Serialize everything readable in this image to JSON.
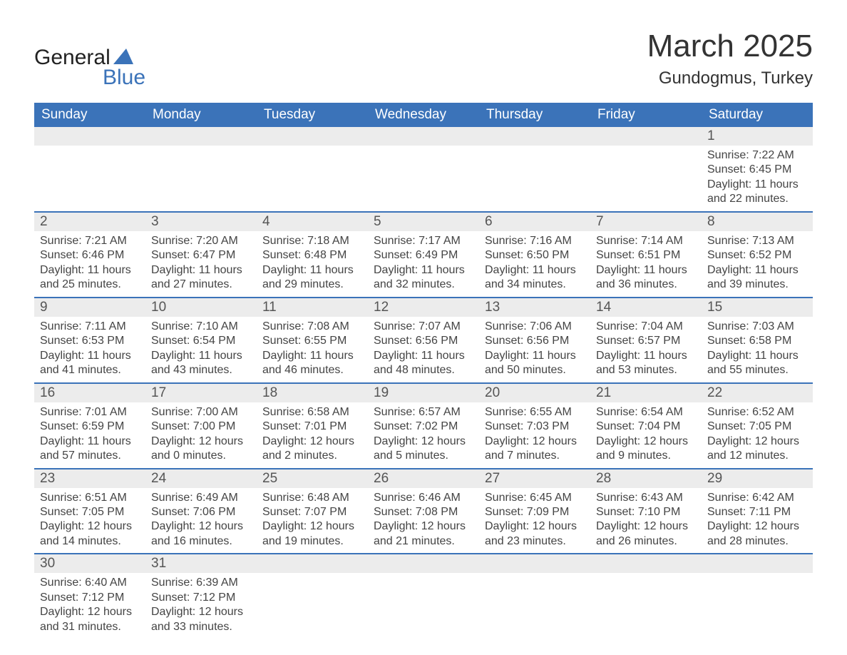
{
  "brand": {
    "line1a": "General",
    "line2": "Blue"
  },
  "colors": {
    "header_bg": "#3b73b9",
    "header_text": "#ffffff",
    "daynum_bg": "#ececec",
    "text": "#444444",
    "row_divider": "#3b73b9",
    "background": "#ffffff"
  },
  "title": {
    "month": "March 2025",
    "location": "Gundogmus, Turkey",
    "month_fontsize": 44,
    "location_fontsize": 24
  },
  "table": {
    "header_fontsize": 19,
    "cell_fontsize": 16,
    "columns": [
      "Sunday",
      "Monday",
      "Tuesday",
      "Wednesday",
      "Thursday",
      "Friday",
      "Saturday"
    ],
    "weeks": [
      [
        null,
        null,
        null,
        null,
        null,
        null,
        {
          "n": "1",
          "sr": "Sunrise: 7:22 AM",
          "ss": "Sunset: 6:45 PM",
          "dl": "Daylight: 11 hours and 22 minutes."
        }
      ],
      [
        {
          "n": "2",
          "sr": "Sunrise: 7:21 AM",
          "ss": "Sunset: 6:46 PM",
          "dl": "Daylight: 11 hours and 25 minutes."
        },
        {
          "n": "3",
          "sr": "Sunrise: 7:20 AM",
          "ss": "Sunset: 6:47 PM",
          "dl": "Daylight: 11 hours and 27 minutes."
        },
        {
          "n": "4",
          "sr": "Sunrise: 7:18 AM",
          "ss": "Sunset: 6:48 PM",
          "dl": "Daylight: 11 hours and 29 minutes."
        },
        {
          "n": "5",
          "sr": "Sunrise: 7:17 AM",
          "ss": "Sunset: 6:49 PM",
          "dl": "Daylight: 11 hours and 32 minutes."
        },
        {
          "n": "6",
          "sr": "Sunrise: 7:16 AM",
          "ss": "Sunset: 6:50 PM",
          "dl": "Daylight: 11 hours and 34 minutes."
        },
        {
          "n": "7",
          "sr": "Sunrise: 7:14 AM",
          "ss": "Sunset: 6:51 PM",
          "dl": "Daylight: 11 hours and 36 minutes."
        },
        {
          "n": "8",
          "sr": "Sunrise: 7:13 AM",
          "ss": "Sunset: 6:52 PM",
          "dl": "Daylight: 11 hours and 39 minutes."
        }
      ],
      [
        {
          "n": "9",
          "sr": "Sunrise: 7:11 AM",
          "ss": "Sunset: 6:53 PM",
          "dl": "Daylight: 11 hours and 41 minutes."
        },
        {
          "n": "10",
          "sr": "Sunrise: 7:10 AM",
          "ss": "Sunset: 6:54 PM",
          "dl": "Daylight: 11 hours and 43 minutes."
        },
        {
          "n": "11",
          "sr": "Sunrise: 7:08 AM",
          "ss": "Sunset: 6:55 PM",
          "dl": "Daylight: 11 hours and 46 minutes."
        },
        {
          "n": "12",
          "sr": "Sunrise: 7:07 AM",
          "ss": "Sunset: 6:56 PM",
          "dl": "Daylight: 11 hours and 48 minutes."
        },
        {
          "n": "13",
          "sr": "Sunrise: 7:06 AM",
          "ss": "Sunset: 6:56 PM",
          "dl": "Daylight: 11 hours and 50 minutes."
        },
        {
          "n": "14",
          "sr": "Sunrise: 7:04 AM",
          "ss": "Sunset: 6:57 PM",
          "dl": "Daylight: 11 hours and 53 minutes."
        },
        {
          "n": "15",
          "sr": "Sunrise: 7:03 AM",
          "ss": "Sunset: 6:58 PM",
          "dl": "Daylight: 11 hours and 55 minutes."
        }
      ],
      [
        {
          "n": "16",
          "sr": "Sunrise: 7:01 AM",
          "ss": "Sunset: 6:59 PM",
          "dl": "Daylight: 11 hours and 57 minutes."
        },
        {
          "n": "17",
          "sr": "Sunrise: 7:00 AM",
          "ss": "Sunset: 7:00 PM",
          "dl": "Daylight: 12 hours and 0 minutes."
        },
        {
          "n": "18",
          "sr": "Sunrise: 6:58 AM",
          "ss": "Sunset: 7:01 PM",
          "dl": "Daylight: 12 hours and 2 minutes."
        },
        {
          "n": "19",
          "sr": "Sunrise: 6:57 AM",
          "ss": "Sunset: 7:02 PM",
          "dl": "Daylight: 12 hours and 5 minutes."
        },
        {
          "n": "20",
          "sr": "Sunrise: 6:55 AM",
          "ss": "Sunset: 7:03 PM",
          "dl": "Daylight: 12 hours and 7 minutes."
        },
        {
          "n": "21",
          "sr": "Sunrise: 6:54 AM",
          "ss": "Sunset: 7:04 PM",
          "dl": "Daylight: 12 hours and 9 minutes."
        },
        {
          "n": "22",
          "sr": "Sunrise: 6:52 AM",
          "ss": "Sunset: 7:05 PM",
          "dl": "Daylight: 12 hours and 12 minutes."
        }
      ],
      [
        {
          "n": "23",
          "sr": "Sunrise: 6:51 AM",
          "ss": "Sunset: 7:05 PM",
          "dl": "Daylight: 12 hours and 14 minutes."
        },
        {
          "n": "24",
          "sr": "Sunrise: 6:49 AM",
          "ss": "Sunset: 7:06 PM",
          "dl": "Daylight: 12 hours and 16 minutes."
        },
        {
          "n": "25",
          "sr": "Sunrise: 6:48 AM",
          "ss": "Sunset: 7:07 PM",
          "dl": "Daylight: 12 hours and 19 minutes."
        },
        {
          "n": "26",
          "sr": "Sunrise: 6:46 AM",
          "ss": "Sunset: 7:08 PM",
          "dl": "Daylight: 12 hours and 21 minutes."
        },
        {
          "n": "27",
          "sr": "Sunrise: 6:45 AM",
          "ss": "Sunset: 7:09 PM",
          "dl": "Daylight: 12 hours and 23 minutes."
        },
        {
          "n": "28",
          "sr": "Sunrise: 6:43 AM",
          "ss": "Sunset: 7:10 PM",
          "dl": "Daylight: 12 hours and 26 minutes."
        },
        {
          "n": "29",
          "sr": "Sunrise: 6:42 AM",
          "ss": "Sunset: 7:11 PM",
          "dl": "Daylight: 12 hours and 28 minutes."
        }
      ],
      [
        {
          "n": "30",
          "sr": "Sunrise: 6:40 AM",
          "ss": "Sunset: 7:12 PM",
          "dl": "Daylight: 12 hours and 31 minutes."
        },
        {
          "n": "31",
          "sr": "Sunrise: 6:39 AM",
          "ss": "Sunset: 7:12 PM",
          "dl": "Daylight: 12 hours and 33 minutes."
        },
        null,
        null,
        null,
        null,
        null
      ]
    ]
  }
}
